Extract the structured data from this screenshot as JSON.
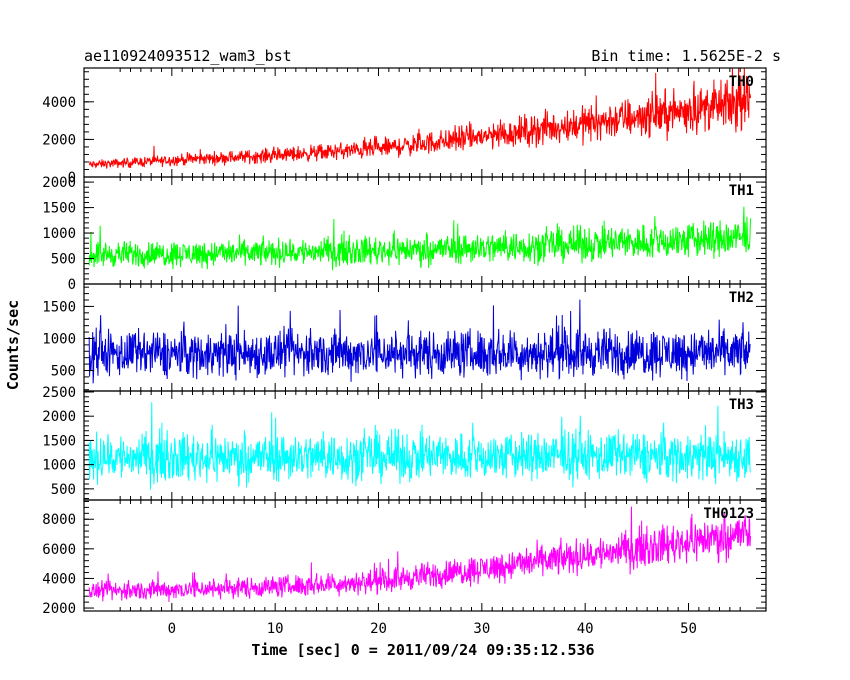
{
  "chart_data": {
    "type": "line",
    "title_left": "ae110924093512_wam3_bst",
    "title_right": "Bin time: 1.5625E-2 s",
    "xlabel": "Time [sec] 0 = 2011/09/24 09:35:12.536",
    "ylabel": "Counts/sec",
    "xlim": [
      -8.5,
      57.5
    ],
    "x_range": [
      -8,
      56
    ],
    "xticks": [
      0,
      10,
      20,
      30,
      40,
      50
    ],
    "panels": [
      {
        "name": "TH0",
        "color": "#ff0000",
        "ylim": [
          0,
          5800
        ],
        "yticks": [
          0,
          2000,
          4000
        ],
        "trend": {
          "x": [
            -8,
            0,
            10,
            20,
            30,
            40,
            50,
            56
          ],
          "y": [
            650,
            900,
            1150,
            1500,
            2150,
            2850,
            3550,
            3950
          ]
        },
        "spread_fraction": 0.35
      },
      {
        "name": "TH1",
        "color": "#00ff00",
        "ylim": [
          0,
          2100
        ],
        "yticks": [
          0,
          500,
          1000,
          1500,
          2000
        ],
        "trend": {
          "x": [
            -8,
            0,
            10,
            20,
            30,
            40,
            50,
            56
          ],
          "y": [
            580,
            590,
            620,
            660,
            710,
            780,
            860,
            900
          ]
        },
        "spread_fraction": 0.45
      },
      {
        "name": "TH2",
        "color": "#0000dd",
        "ylim": [
          180,
          1850
        ],
        "yticks": [
          500,
          1000,
          1500
        ],
        "trend": {
          "x": [
            -8,
            56
          ],
          "y": [
            760,
            780
          ]
        },
        "spread_fraction": 0.5
      },
      {
        "name": "TH3",
        "color": "#00ffff",
        "ylim": [
          270,
          2520
        ],
        "yticks": [
          500,
          1000,
          1500,
          2000,
          2500
        ],
        "trend": {
          "x": [
            -8,
            56
          ],
          "y": [
            1150,
            1180
          ]
        },
        "spread_fraction": 0.45
      },
      {
        "name": "TH0123",
        "color": "#ff00ff",
        "ylim": [
          1800,
          9300
        ],
        "yticks": [
          2000,
          4000,
          6000,
          8000
        ],
        "trend": {
          "x": [
            -8,
            0,
            10,
            20,
            30,
            40,
            50,
            56
          ],
          "y": [
            3100,
            3250,
            3450,
            3800,
            4650,
            5550,
            6500,
            7100
          ]
        },
        "spread_fraction": 0.22
      }
    ]
  }
}
